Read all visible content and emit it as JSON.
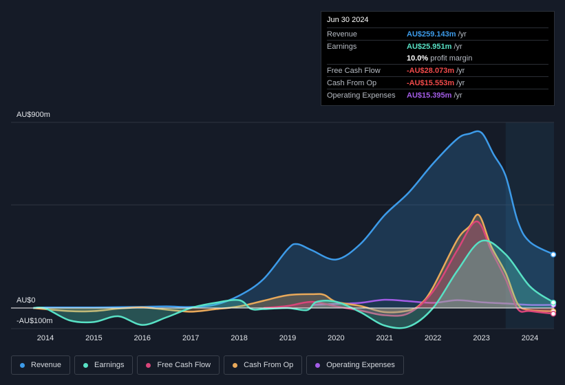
{
  "tooltip": {
    "date": "Jun 30 2024",
    "rows": [
      {
        "label": "Revenue",
        "value": "AU$259.143m",
        "unit": "/yr",
        "color": "#3d9be9"
      },
      {
        "label": "Earnings",
        "value": "AU$25.951m",
        "unit": "/yr",
        "color": "#58e1c5"
      },
      {
        "label": "",
        "value": "10.0%",
        "unit": "profit margin",
        "color": "#ffffff"
      },
      {
        "label": "Free Cash Flow",
        "value": "-AU$28.073m",
        "unit": "/yr",
        "color": "#f04a4a"
      },
      {
        "label": "Cash From Op",
        "value": "-AU$15.553m",
        "unit": "/yr",
        "color": "#f04a4a"
      },
      {
        "label": "Operating Expenses",
        "value": "AU$15.395m",
        "unit": "/yr",
        "color": "#a35ce6"
      }
    ]
  },
  "legend": [
    {
      "label": "Revenue",
      "color": "#3d9be9"
    },
    {
      "label": "Earnings",
      "color": "#58e1c5"
    },
    {
      "label": "Free Cash Flow",
      "color": "#d9457a"
    },
    {
      "label": "Cash From Op",
      "color": "#e9a95a"
    },
    {
      "label": "Operating Expenses",
      "color": "#a35ce6"
    }
  ],
  "chart_data": {
    "type": "area",
    "ylabels": {
      "top": "AU$900m",
      "zero": "AU$0",
      "bottom": "-AU$100m"
    },
    "ylim": [
      -100,
      900
    ],
    "xlim": [
      2013.75,
      2024.5
    ],
    "xticks": [
      "2014",
      "2015",
      "2016",
      "2017",
      "2018",
      "2019",
      "2020",
      "2021",
      "2022",
      "2023",
      "2024"
    ],
    "forecast_start": 2023.5,
    "series": [
      {
        "name": "Revenue",
        "color": "#3d9be9",
        "fill": true,
        "points": [
          [
            2013.75,
            0
          ],
          [
            2014,
            3
          ],
          [
            2015,
            3
          ],
          [
            2015.5,
            4
          ],
          [
            2016,
            6
          ],
          [
            2016.5,
            8
          ],
          [
            2017,
            5
          ],
          [
            2017.5,
            16
          ],
          [
            2018,
            60
          ],
          [
            2018.5,
            140
          ],
          [
            2019,
            285
          ],
          [
            2019.2,
            310
          ],
          [
            2019.5,
            280
          ],
          [
            2020,
            235
          ],
          [
            2020.5,
            310
          ],
          [
            2021,
            450
          ],
          [
            2021.5,
            560
          ],
          [
            2022,
            700
          ],
          [
            2022.5,
            820
          ],
          [
            2022.75,
            845
          ],
          [
            2023,
            850
          ],
          [
            2023.25,
            745
          ],
          [
            2023.5,
            640
          ],
          [
            2023.75,
            420
          ],
          [
            2024,
            320
          ],
          [
            2024.5,
            259
          ]
        ]
      },
      {
        "name": "Operating Expenses",
        "color": "#a35ce6",
        "fill": false,
        "points": [
          [
            2019.5,
            15
          ],
          [
            2020,
            20
          ],
          [
            2020.5,
            25
          ],
          [
            2021,
            40
          ],
          [
            2021.5,
            33
          ],
          [
            2022,
            25
          ],
          [
            2022.5,
            38
          ],
          [
            2023,
            28
          ],
          [
            2023.5,
            22
          ],
          [
            2024,
            15
          ],
          [
            2024.5,
            15
          ]
        ]
      },
      {
        "name": "Cash From Op",
        "color": "#e9a95a",
        "fill": true,
        "points": [
          [
            2013.75,
            0
          ],
          [
            2014.5,
            -15
          ],
          [
            2015,
            -15
          ],
          [
            2015.5,
            -3
          ],
          [
            2016,
            3
          ],
          [
            2016.5,
            -8
          ],
          [
            2017,
            -18
          ],
          [
            2017.5,
            -6
          ],
          [
            2018,
            8
          ],
          [
            2018.5,
            35
          ],
          [
            2019,
            62
          ],
          [
            2019.5,
            67
          ],
          [
            2019.75,
            64
          ],
          [
            2020,
            30
          ],
          [
            2020.5,
            10
          ],
          [
            2021,
            -20
          ],
          [
            2021.5,
            -12
          ],
          [
            2021.75,
            20
          ],
          [
            2022,
            100
          ],
          [
            2022.5,
            330
          ],
          [
            2022.75,
            395
          ],
          [
            2022.95,
            450
          ],
          [
            2023.2,
            300
          ],
          [
            2023.5,
            170
          ],
          [
            2023.75,
            20
          ],
          [
            2024,
            -10
          ],
          [
            2024.5,
            -16
          ]
        ]
      },
      {
        "name": "Free Cash Flow",
        "color": "#d9457a",
        "fill": true,
        "points": [
          [
            2018.5,
            0
          ],
          [
            2019,
            10
          ],
          [
            2019.5,
            30
          ],
          [
            2020,
            8
          ],
          [
            2020.5,
            -12
          ],
          [
            2021,
            -35
          ],
          [
            2021.5,
            -25
          ],
          [
            2022,
            80
          ],
          [
            2022.5,
            280
          ],
          [
            2022.9,
            420
          ],
          [
            2023.2,
            280
          ],
          [
            2023.5,
            140
          ],
          [
            2023.75,
            -5
          ],
          [
            2024,
            -15
          ],
          [
            2024.5,
            -28
          ]
        ]
      },
      {
        "name": "Earnings",
        "color": "#58e1c5",
        "fill": true,
        "points": [
          [
            2013.75,
            0
          ],
          [
            2014,
            -2
          ],
          [
            2014.5,
            -60
          ],
          [
            2015,
            -68
          ],
          [
            2015.5,
            -40
          ],
          [
            2016,
            -82
          ],
          [
            2016.5,
            -45
          ],
          [
            2017,
            0
          ],
          [
            2017.5,
            25
          ],
          [
            2018,
            38
          ],
          [
            2018.25,
            -5
          ],
          [
            2018.5,
            -5
          ],
          [
            2019,
            0
          ],
          [
            2019.4,
            -10
          ],
          [
            2019.6,
            30
          ],
          [
            2020,
            30
          ],
          [
            2020.5,
            -20
          ],
          [
            2021,
            -85
          ],
          [
            2021.5,
            -90
          ],
          [
            2022,
            0
          ],
          [
            2022.5,
            180
          ],
          [
            2023,
            325
          ],
          [
            2023.5,
            260
          ],
          [
            2024,
            105
          ],
          [
            2024.5,
            26
          ]
        ]
      }
    ]
  }
}
